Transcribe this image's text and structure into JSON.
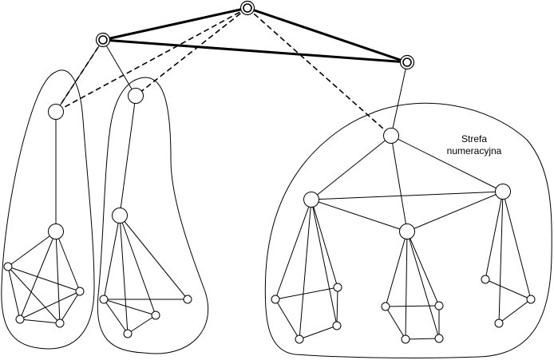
{
  "zone_label": {
    "line1": "Strefa",
    "line2": "numeracyjna"
  }
}
